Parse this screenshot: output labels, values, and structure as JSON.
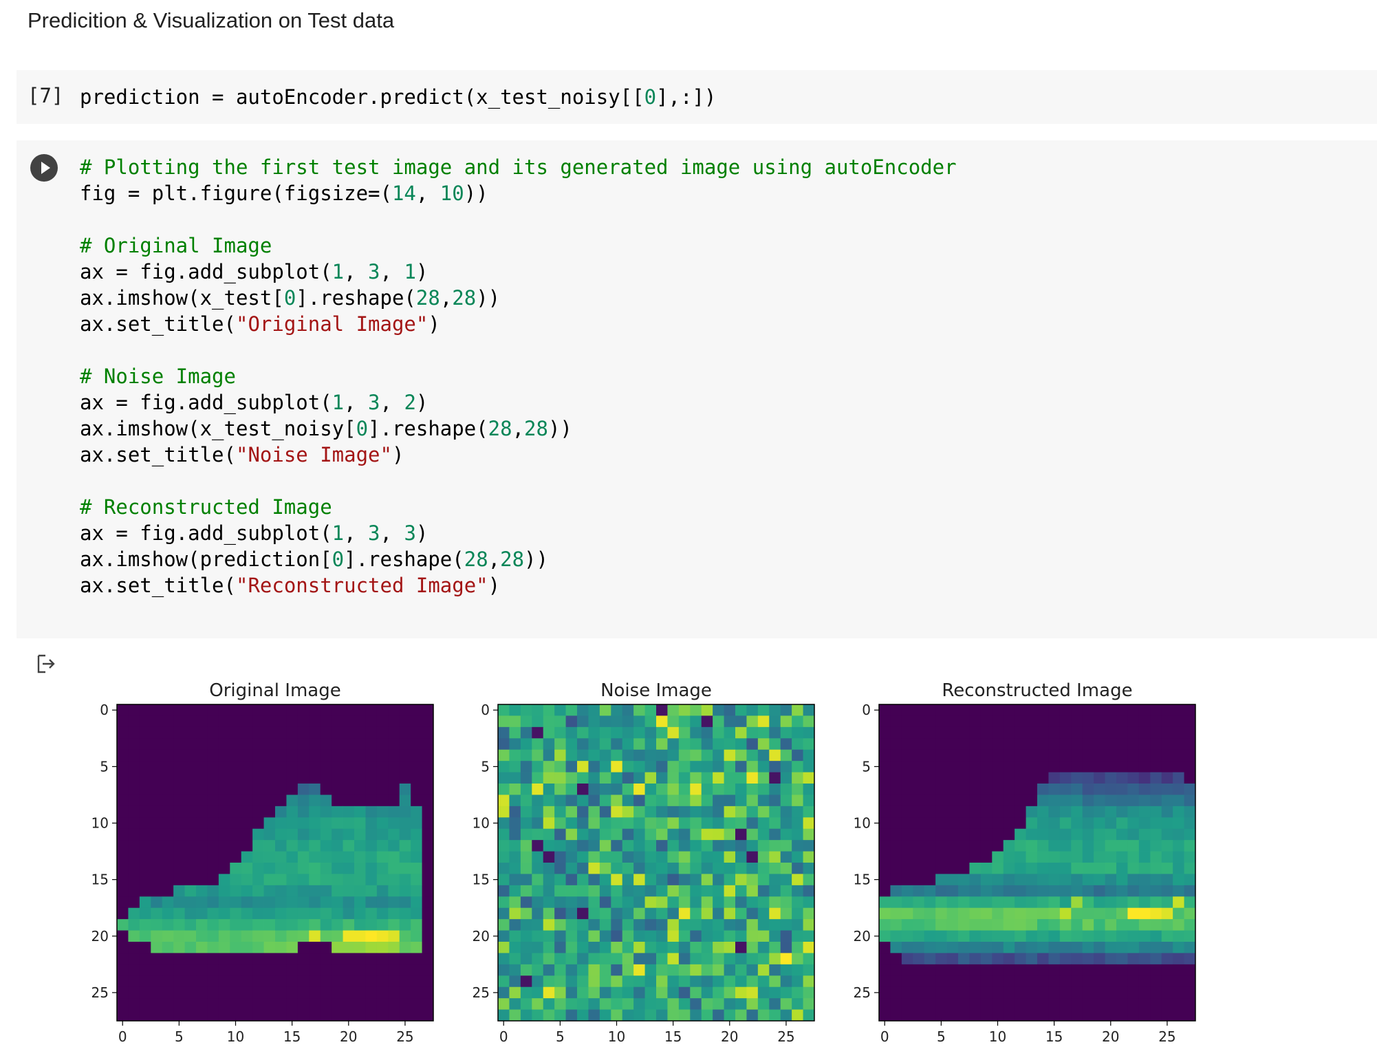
{
  "heading": "Predicition & Visualization on Test data",
  "cell7": {
    "exec_count": "[7]",
    "code": [
      [
        [
          "prediction = autoEncoder.predict(x_test_noisy[[",
          ""
        ],
        [
          "0",
          "num"
        ],
        [
          "],:])",
          ""
        ]
      ]
    ]
  },
  "cell8": {
    "code": [
      [
        [
          "# Plotting the first test image and its generated image using autoEncoder",
          "cmt"
        ]
      ],
      [
        [
          "fig = plt.figure(figsize=(",
          ""
        ],
        [
          "14",
          "num"
        ],
        [
          ", ",
          ""
        ],
        [
          "10",
          "num"
        ],
        [
          "))",
          ""
        ]
      ],
      [],
      [
        [
          "# Original Image",
          "cmt"
        ]
      ],
      [
        [
          "ax = fig.add_subplot(",
          ""
        ],
        [
          "1",
          "num"
        ],
        [
          ", ",
          ""
        ],
        [
          "3",
          "num"
        ],
        [
          ", ",
          ""
        ],
        [
          "1",
          "num"
        ],
        [
          ")",
          ""
        ]
      ],
      [
        [
          "ax.imshow(x_test[",
          ""
        ],
        [
          "0",
          "num"
        ],
        [
          "].reshape(",
          ""
        ],
        [
          "28",
          "num"
        ],
        [
          ",",
          ""
        ],
        [
          "28",
          "num"
        ],
        [
          "))",
          ""
        ]
      ],
      [
        [
          "ax.set_title(",
          ""
        ],
        [
          "\"Original Image\"",
          "str"
        ],
        [
          ")",
          ""
        ]
      ],
      [],
      [
        [
          "# Noise Image",
          "cmt"
        ]
      ],
      [
        [
          "ax = fig.add_subplot(",
          ""
        ],
        [
          "1",
          "num"
        ],
        [
          ", ",
          ""
        ],
        [
          "3",
          "num"
        ],
        [
          ", ",
          ""
        ],
        [
          "2",
          "num"
        ],
        [
          ")",
          ""
        ]
      ],
      [
        [
          "ax.imshow(x_test_noisy[",
          ""
        ],
        [
          "0",
          "num"
        ],
        [
          "].reshape(",
          ""
        ],
        [
          "28",
          "num"
        ],
        [
          ",",
          ""
        ],
        [
          "28",
          "num"
        ],
        [
          "))",
          ""
        ]
      ],
      [
        [
          "ax.set_title(",
          ""
        ],
        [
          "\"Noise Image\"",
          "str"
        ],
        [
          ")",
          ""
        ]
      ],
      [],
      [
        [
          "# Reconstructed Image",
          "cmt"
        ]
      ],
      [
        [
          "ax = fig.add_subplot(",
          ""
        ],
        [
          "1",
          "num"
        ],
        [
          ", ",
          ""
        ],
        [
          "3",
          "num"
        ],
        [
          ", ",
          ""
        ],
        [
          "3",
          "num"
        ],
        [
          ")",
          ""
        ]
      ],
      [
        [
          "ax.imshow(prediction[",
          ""
        ],
        [
          "0",
          "num"
        ],
        [
          "].reshape(",
          ""
        ],
        [
          "28",
          "num"
        ],
        [
          ",",
          ""
        ],
        [
          "28",
          "num"
        ],
        [
          "))",
          ""
        ]
      ],
      [
        [
          "ax.set_title(",
          ""
        ],
        [
          "\"Reconstructed Image\"",
          "str"
        ],
        [
          ")",
          ""
        ]
      ]
    ]
  },
  "icons": {
    "run": "play-circle-icon",
    "output": "output-arrow-icon"
  },
  "colors": {
    "cell_bg": "#f7f7f7",
    "comment": "#008000",
    "number": "#098658",
    "string": "#a31515",
    "run_button": "#424242"
  },
  "chart_data": [
    {
      "type": "heatmap",
      "title": "Original Image",
      "colormap": "viridis",
      "grid_size": [
        28,
        28
      ],
      "xlim": [
        -0.5,
        27.5
      ],
      "ylim": [
        27.5,
        -0.5
      ],
      "xticks": [
        0,
        5,
        10,
        15,
        20,
        25
      ],
      "yticks": [
        0,
        5,
        10,
        15,
        20,
        25
      ],
      "rows": [
        {
          "y": 7,
          "from": 16,
          "to": 17,
          "v": 0.35
        },
        {
          "y": 7,
          "from": 25,
          "to": 25,
          "v": 0.4
        },
        {
          "y": 8,
          "from": 15,
          "to": 18,
          "v": 0.45
        },
        {
          "y": 8,
          "from": 25,
          "to": 25,
          "v": 0.5
        },
        {
          "y": 9,
          "from": 14,
          "to": 26,
          "v": 0.5
        },
        {
          "y": 10,
          "from": 13,
          "to": 26,
          "v": 0.55
        },
        {
          "y": 11,
          "from": 12,
          "to": 26,
          "v": 0.55
        },
        {
          "y": 12,
          "from": 12,
          "to": 26,
          "v": 0.58
        },
        {
          "y": 13,
          "from": 11,
          "to": 26,
          "v": 0.6
        },
        {
          "y": 14,
          "from": 10,
          "to": 26,
          "v": 0.6
        },
        {
          "y": 15,
          "from": 9,
          "to": 26,
          "v": 0.6
        },
        {
          "y": 16,
          "from": 5,
          "to": 26,
          "v": 0.55
        },
        {
          "y": 17,
          "from": 2,
          "to": 26,
          "v": 0.5
        },
        {
          "y": 18,
          "from": 1,
          "to": 26,
          "v": 0.55
        },
        {
          "y": 19,
          "from": 0,
          "to": 26,
          "v": 0.65
        },
        {
          "y": 20,
          "from": 1,
          "to": 26,
          "v": 0.72
        },
        {
          "y": 21,
          "from": 3,
          "to": 15,
          "v": 0.75
        },
        {
          "y": 21,
          "from": 19,
          "to": 26,
          "v": 0.8
        }
      ],
      "highlights": [
        {
          "x": 17,
          "y": 20,
          "v": 0.95
        },
        {
          "x": 20,
          "y": 20,
          "v": 0.98
        },
        {
          "x": 21,
          "y": 20,
          "v": 0.98
        },
        {
          "x": 22,
          "y": 20,
          "v": 1.0
        },
        {
          "x": 23,
          "y": 20,
          "v": 0.98
        },
        {
          "x": 24,
          "y": 20,
          "v": 0.95
        }
      ]
    },
    {
      "type": "heatmap",
      "title": "Noise Image",
      "colormap": "viridis",
      "grid_size": [
        28,
        28
      ],
      "xlim": [
        -0.5,
        27.5
      ],
      "ylim": [
        27.5,
        -0.5
      ],
      "xticks": [
        0,
        5,
        10,
        15,
        20,
        25
      ],
      "yticks": [
        0,
        5,
        10,
        15,
        20,
        25
      ],
      "value_range": [
        0.25,
        0.95
      ],
      "seed": 7
    },
    {
      "type": "heatmap",
      "title": "Reconstructed Image",
      "colormap": "viridis",
      "grid_size": [
        28,
        28
      ],
      "xlim": [
        -0.5,
        27.5
      ],
      "ylim": [
        27.5,
        -0.5
      ],
      "xticks": [
        0,
        5,
        10,
        15,
        20,
        25
      ],
      "yticks": [
        0,
        5,
        10,
        15,
        20,
        25
      ],
      "rows": [
        {
          "y": 6,
          "from": 15,
          "to": 26,
          "v": 0.2
        },
        {
          "y": 7,
          "from": 14,
          "to": 27,
          "v": 0.3
        },
        {
          "y": 8,
          "from": 14,
          "to": 27,
          "v": 0.4
        },
        {
          "y": 9,
          "from": 13,
          "to": 27,
          "v": 0.5
        },
        {
          "y": 10,
          "from": 13,
          "to": 27,
          "v": 0.55
        },
        {
          "y": 11,
          "from": 12,
          "to": 27,
          "v": 0.55
        },
        {
          "y": 12,
          "from": 11,
          "to": 27,
          "v": 0.6
        },
        {
          "y": 13,
          "from": 10,
          "to": 27,
          "v": 0.6
        },
        {
          "y": 14,
          "from": 8,
          "to": 27,
          "v": 0.6
        },
        {
          "y": 15,
          "from": 5,
          "to": 27,
          "v": 0.5
        },
        {
          "y": 16,
          "from": 1,
          "to": 27,
          "v": 0.4
        },
        {
          "y": 17,
          "from": 0,
          "to": 27,
          "v": 0.62
        },
        {
          "y": 18,
          "from": 0,
          "to": 27,
          "v": 0.75
        },
        {
          "y": 19,
          "from": 0,
          "to": 27,
          "v": 0.72
        },
        {
          "y": 20,
          "from": 0,
          "to": 27,
          "v": 0.6
        },
        {
          "y": 21,
          "from": 1,
          "to": 27,
          "v": 0.45
        },
        {
          "y": 22,
          "from": 2,
          "to": 27,
          "v": 0.25
        }
      ],
      "highlights": [
        {
          "x": 22,
          "y": 18,
          "v": 1.0
        },
        {
          "x": 23,
          "y": 18,
          "v": 1.0
        },
        {
          "x": 24,
          "y": 18,
          "v": 0.98
        },
        {
          "x": 25,
          "y": 18,
          "v": 0.95
        },
        {
          "x": 16,
          "y": 18,
          "v": 0.9
        },
        {
          "x": 17,
          "y": 17,
          "v": 0.85
        },
        {
          "x": 26,
          "y": 17,
          "v": 0.92
        }
      ]
    }
  ]
}
